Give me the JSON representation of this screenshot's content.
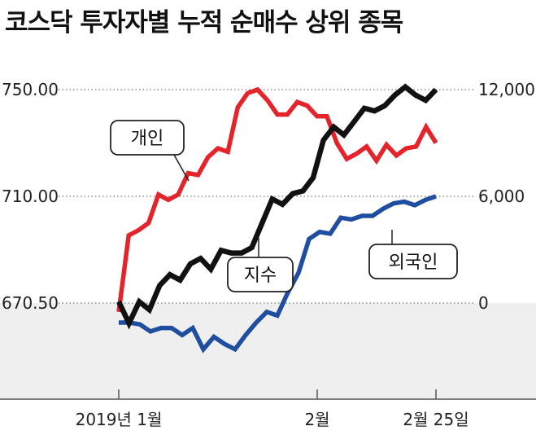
{
  "title": "코스닥 투자자별 누적 순매수 상위 종목",
  "chart_data": {
    "type": "line",
    "left_axis": {
      "ticks": [
        "750.00",
        "710.00",
        "670.50"
      ],
      "values": [
        750,
        710,
        670.5
      ]
    },
    "right_axis": {
      "ticks": [
        "12,000",
        "6,000",
        "0"
      ],
      "values": [
        12000,
        6000,
        0
      ]
    },
    "x_tick_labels": [
      "2019년 1월",
      "2월",
      "2월 25일"
    ],
    "grid": "dotted horizontal",
    "series": [
      {
        "name": "개인",
        "axis": "right",
        "color": "#e5232b",
        "values": [
          -500,
          3800,
          4100,
          4500,
          6100,
          5800,
          6100,
          7300,
          7200,
          8200,
          8700,
          8500,
          11000,
          11800,
          12000,
          11400,
          10600,
          10600,
          11300,
          11100,
          10500,
          10500,
          9000,
          8100,
          8400,
          8800,
          8000,
          8900,
          8300,
          8700,
          8800,
          9900,
          9000
        ]
      },
      {
        "name": "외국인",
        "axis": "right",
        "color": "#1f4ea1",
        "values": [
          -1100,
          -1100,
          -1200,
          -1600,
          -1400,
          -1400,
          -1800,
          -1400,
          -2600,
          -1900,
          -2300,
          -2600,
          -1800,
          -1100,
          -500,
          -700,
          600,
          1700,
          3600,
          4000,
          3900,
          4800,
          4700,
          4900,
          4900,
          5300,
          5600,
          5700,
          5500,
          5800,
          6000
        ]
      },
      {
        "name": "지수",
        "axis": "left",
        "color": "#111111",
        "values": [
          671,
          663,
          671,
          668,
          677,
          681,
          679,
          685,
          687,
          683,
          690,
          689,
          689,
          691,
          700,
          709,
          707,
          711,
          712,
          717,
          731,
          736,
          733,
          738,
          743,
          742,
          744,
          748,
          751,
          748,
          746,
          750
        ]
      }
    ]
  }
}
